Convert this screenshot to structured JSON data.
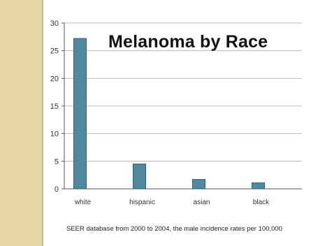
{
  "chart_data": {
    "type": "bar",
    "title": "Melanoma by Race",
    "categories": [
      "white",
      "hispanic",
      "asian",
      "black"
    ],
    "values": [
      27.2,
      4.5,
      1.7,
      1.1
    ],
    "ylim": [
      0,
      30
    ],
    "yticks": [
      "0",
      "5",
      "10",
      "15",
      "20",
      "25",
      "30"
    ],
    "xlabel": "",
    "ylabel": "",
    "grid": true,
    "bar_color": "#4f8aa0",
    "caption": "SEER database from 2000 to 2004, the male incidence rates per 100,000"
  }
}
